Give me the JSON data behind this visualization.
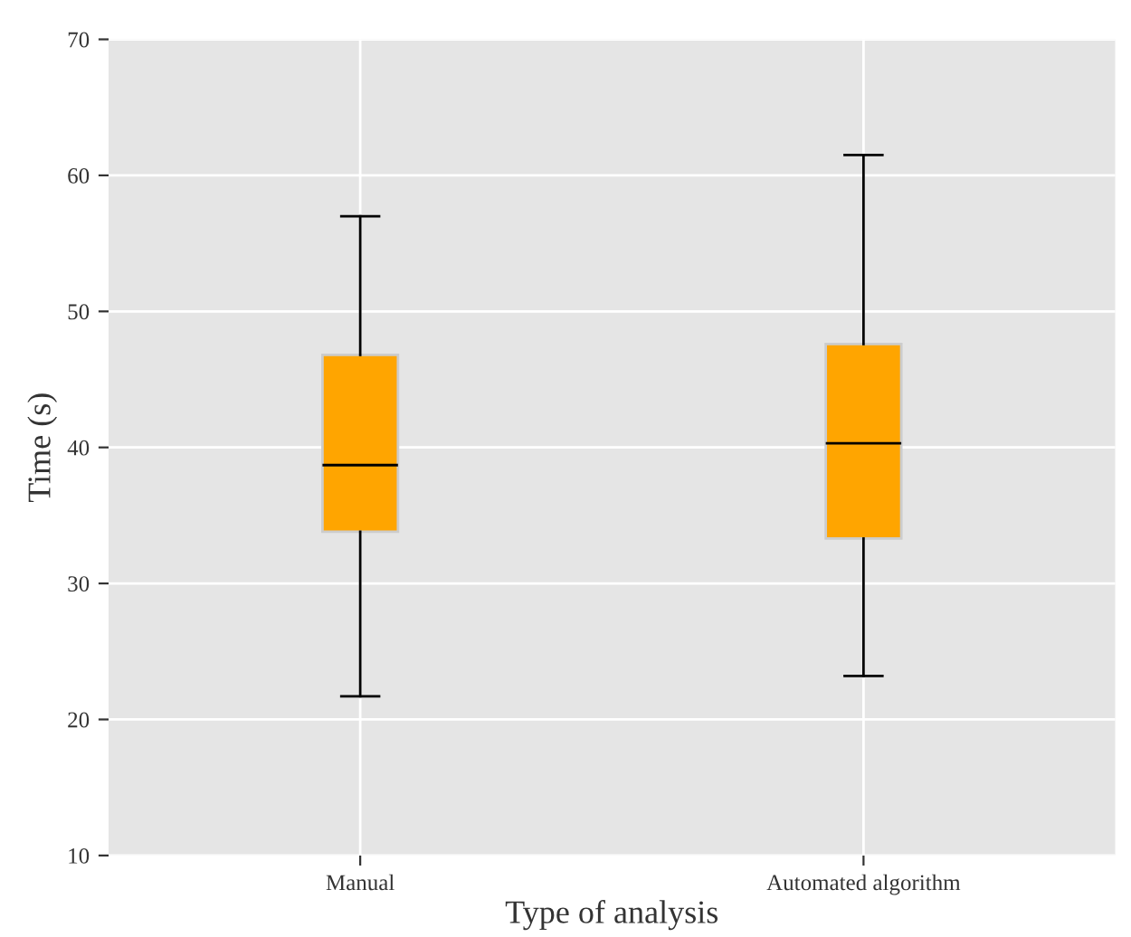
{
  "chart_data": {
    "type": "box",
    "xlabel": "Type of analysis",
    "ylabel": "Time (s)",
    "categories": [
      "Manual",
      "Automated algorithm"
    ],
    "boxes": [
      {
        "low": 21.7,
        "q1": 33.8,
        "median": 38.7,
        "q3": 46.8,
        "high": 57
      },
      {
        "low": 23.2,
        "q1": 33.3,
        "median": 40.3,
        "q3": 47.6,
        "high": 61.5
      }
    ],
    "color": "#ffa500",
    "ylim": [
      10,
      70
    ],
    "yticks": [
      10,
      20,
      30,
      40,
      50,
      60,
      70
    ],
    "grid": true
  }
}
